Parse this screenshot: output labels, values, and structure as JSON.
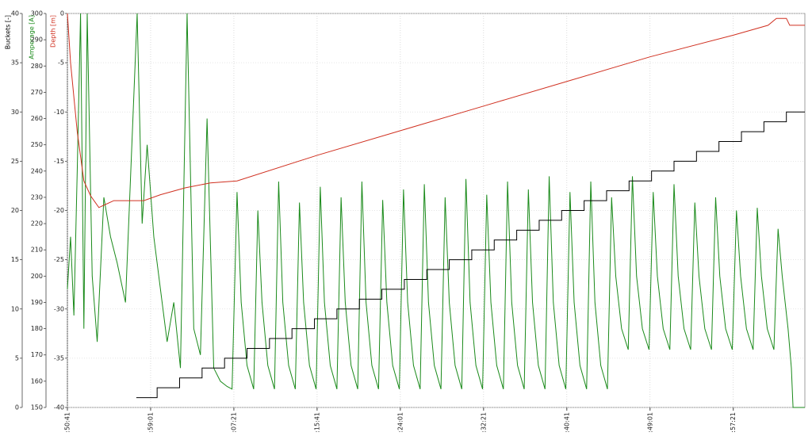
{
  "chart_data": {
    "type": "line",
    "xlim": [
      6641,
      11071
    ],
    "xticks": [
      {
        "value": 6641,
        "label": "1:50:41"
      },
      {
        "value": 7141,
        "label": "1:59:01"
      },
      {
        "value": 7641,
        "label": "2:07:21"
      },
      {
        "value": 8141,
        "label": "2:15:41"
      },
      {
        "value": 8641,
        "label": "2:24:01"
      },
      {
        "value": 9141,
        "label": "2:32:21"
      },
      {
        "value": 9641,
        "label": "2:40:41"
      },
      {
        "value": 10141,
        "label": "2:49:01"
      },
      {
        "value": 10641,
        "label": "2:57:21"
      }
    ],
    "grid": true,
    "axes": [
      {
        "label": "Buckets [-]",
        "lim": [
          0,
          40
        ],
        "ticks": [
          0,
          5,
          10,
          15,
          20,
          25,
          30,
          35,
          40
        ],
        "color": "#000000"
      },
      {
        "label": "Amperage [A]",
        "lim": [
          150,
          300
        ],
        "ticks": [
          150,
          160,
          170,
          180,
          190,
          200,
          210,
          220,
          230,
          240,
          250,
          260,
          270,
          280,
          290,
          300
        ],
        "color": "#1a8a1a"
      },
      {
        "label": "Depth [m]",
        "lim": [
          -40,
          0
        ],
        "ticks": [
          -40,
          -35,
          -30,
          -25,
          -20,
          -15,
          -10,
          -5,
          0
        ],
        "color": "#d03020"
      }
    ],
    "series": [
      {
        "name": "Amperage [A]",
        "axis": 1,
        "color": "#1a8a1a",
        "x": [
          6641,
          6660,
          6680,
          6700,
          6720,
          6740,
          6760,
          6790,
          6820,
          6860,
          6900,
          6940,
          6990,
          7060,
          7090,
          7120,
          7160,
          7200,
          7240,
          7280,
          7320,
          7360,
          7400,
          7440,
          7480,
          7520,
          7560,
          7600,
          7630,
          7660,
          7685,
          7720,
          7760,
          7785,
          7810,
          7845,
          7885,
          7910,
          7935,
          7970,
          8010,
          8035,
          8060,
          8095,
          8135,
          8160,
          8185,
          8220,
          8260,
          8285,
          8310,
          8345,
          8385,
          8410,
          8435,
          8470,
          8510,
          8535,
          8560,
          8595,
          8635,
          8660,
          8685,
          8720,
          8760,
          8785,
          8810,
          8845,
          8885,
          8910,
          8935,
          8970,
          9010,
          9035,
          9060,
          9095,
          9135,
          9160,
          9185,
          9220,
          9260,
          9285,
          9310,
          9345,
          9385,
          9410,
          9435,
          9470,
          9510,
          9535,
          9560,
          9595,
          9635,
          9660,
          9685,
          9720,
          9760,
          9785,
          9810,
          9845,
          9885,
          9910,
          9935,
          9970,
          10010,
          10035,
          10060,
          10095,
          10135,
          10160,
          10185,
          10220,
          10260,
          10285,
          10310,
          10345,
          10385,
          10410,
          10435,
          10470,
          10510,
          10535,
          10560,
          10595,
          10635,
          10660,
          10685,
          10720,
          10760,
          10785,
          10810,
          10845,
          10885,
          10910,
          10935,
          10970,
          10990,
          11000,
          11071
        ],
        "values": [
          195,
          215,
          185,
          240,
          300,
          180,
          300,
          200,
          175,
          230,
          215,
          205,
          190,
          300,
          220,
          250,
          215,
          195,
          175,
          190,
          165,
          300,
          180,
          170,
          260,
          165,
          160,
          158,
          157,
          232,
          190,
          166,
          157,
          225,
          190,
          166,
          157,
          236,
          190,
          166,
          157,
          228,
          190,
          166,
          157,
          234,
          190,
          166,
          157,
          230,
          190,
          166,
          157,
          236,
          190,
          166,
          157,
          229,
          190,
          166,
          157,
          233,
          190,
          166,
          157,
          235,
          190,
          166,
          157,
          230,
          190,
          166,
          157,
          237,
          190,
          166,
          157,
          231,
          190,
          166,
          157,
          236,
          190,
          166,
          157,
          233,
          190,
          166,
          157,
          238,
          190,
          166,
          157,
          232,
          190,
          166,
          157,
          236,
          190,
          166,
          157,
          230,
          200,
          180,
          172,
          238,
          200,
          180,
          172,
          232,
          200,
          180,
          172,
          235,
          200,
          180,
          172,
          228,
          200,
          180,
          172,
          230,
          200,
          180,
          172,
          225,
          200,
          180,
          172,
          226,
          200,
          180,
          172,
          218,
          200,
          180,
          165,
          150,
          150
        ]
      },
      {
        "name": "Depth [m]",
        "axis": 2,
        "color": "#d03020",
        "x": [
          6641,
          6660,
          6700,
          6740,
          6780,
          6830,
          6920,
          7100,
          7200,
          7350,
          7500,
          7660,
          8141,
          8641,
          9141,
          9641,
          10141,
          10641,
          10850,
          10900,
          10960,
          10980,
          11071
        ],
        "values": [
          0,
          -5,
          -12,
          -17,
          -18.5,
          -19.7,
          -19,
          -19,
          -18.4,
          -17.7,
          -17.2,
          -17,
          -14.4,
          -11.9,
          -9.4,
          -6.9,
          -4.4,
          -2.2,
          -1.2,
          -0.5,
          -0.5,
          -1.2,
          -1.2
        ]
      },
      {
        "name": "Buckets [-]",
        "axis": 0,
        "color": "#000000",
        "step": true,
        "x": [
          7055,
          7180,
          7315,
          7450,
          7585,
          7720,
          7855,
          7990,
          8125,
          8260,
          8395,
          8530,
          8665,
          8800,
          8935,
          9070,
          9205,
          9340,
          9475,
          9610,
          9745,
          9880,
          10015,
          10150,
          10285,
          10420,
          10555,
          10690,
          10825,
          10960,
          11071
        ],
        "values": [
          1,
          2,
          3,
          4,
          5,
          6,
          7,
          8,
          9,
          10,
          11,
          12,
          13,
          14,
          15,
          16,
          17,
          18,
          19,
          20,
          21,
          22,
          23,
          24,
          25,
          26,
          27,
          28,
          29,
          30,
          30
        ]
      }
    ]
  }
}
